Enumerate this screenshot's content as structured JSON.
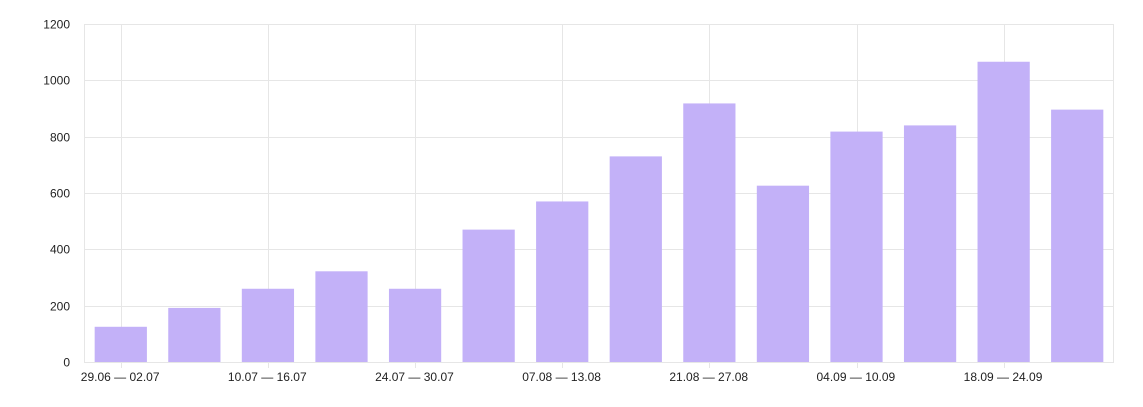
{
  "chart_data": {
    "type": "bar",
    "categories": [
      "29.06 — 02.07",
      "",
      "10.07 — 16.07",
      "",
      "24.07 — 30.07",
      "",
      "07.08 — 13.08",
      "",
      "21.08 — 27.08",
      "",
      "04.09 — 10.09",
      "",
      "18.09 — 24.09",
      ""
    ],
    "values": [
      125,
      192,
      260,
      322,
      260,
      470,
      570,
      730,
      918,
      626,
      818,
      840,
      1066,
      896
    ],
    "ylim": [
      0,
      1200
    ],
    "yticks": [
      0,
      200,
      400,
      600,
      800,
      1000,
      1200
    ],
    "grid": true,
    "bar_color": "#c3b1f8",
    "grid_color": "#e6e6e6",
    "title": "",
    "xlabel": "",
    "ylabel": ""
  }
}
